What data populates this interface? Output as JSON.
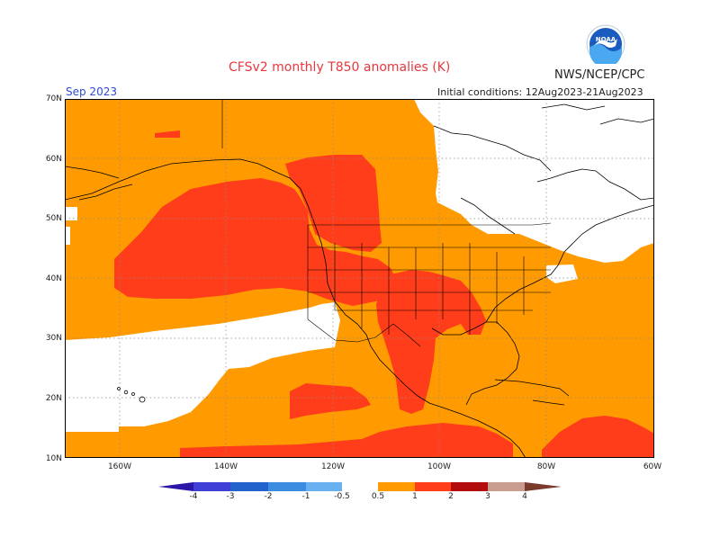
{
  "header": {
    "title": "CFSv2 monthly T850 anomalies (K)",
    "month": "Sep 2023",
    "agency": "NWS/NCEP/CPC",
    "initial_conditions": "Initial conditions: 12Aug2023-21Aug2023"
  },
  "logo": {
    "text": "NOAA",
    "icon": "noaa-logo-icon"
  },
  "axes": {
    "lat_labels": [
      "70N",
      "60N",
      "50N",
      "40N",
      "30N",
      "20N",
      "10N"
    ],
    "lon_labels": [
      "160W",
      "140W",
      "120W",
      "100W",
      "80W",
      "60W"
    ]
  },
  "colorbar": {
    "labels": [
      "-4",
      "-3",
      "-2",
      "-1",
      "-0.5",
      "0.5",
      "1",
      "2",
      "3",
      "4"
    ],
    "colors": [
      "#2a16a8",
      "#3d3fd6",
      "#2262cc",
      "#3a8de0",
      "#68b0f0",
      "#ffffff",
      "#ff9b00",
      "#ff3d1a",
      "#b30c0c",
      "#c89c8e",
      "#7a3a2c"
    ]
  },
  "palette": {
    "anom_05_1": "#ff9b00",
    "anom_1_2": "#ff3d1a",
    "neutral": "#ffffff",
    "frame": "#000000"
  }
}
